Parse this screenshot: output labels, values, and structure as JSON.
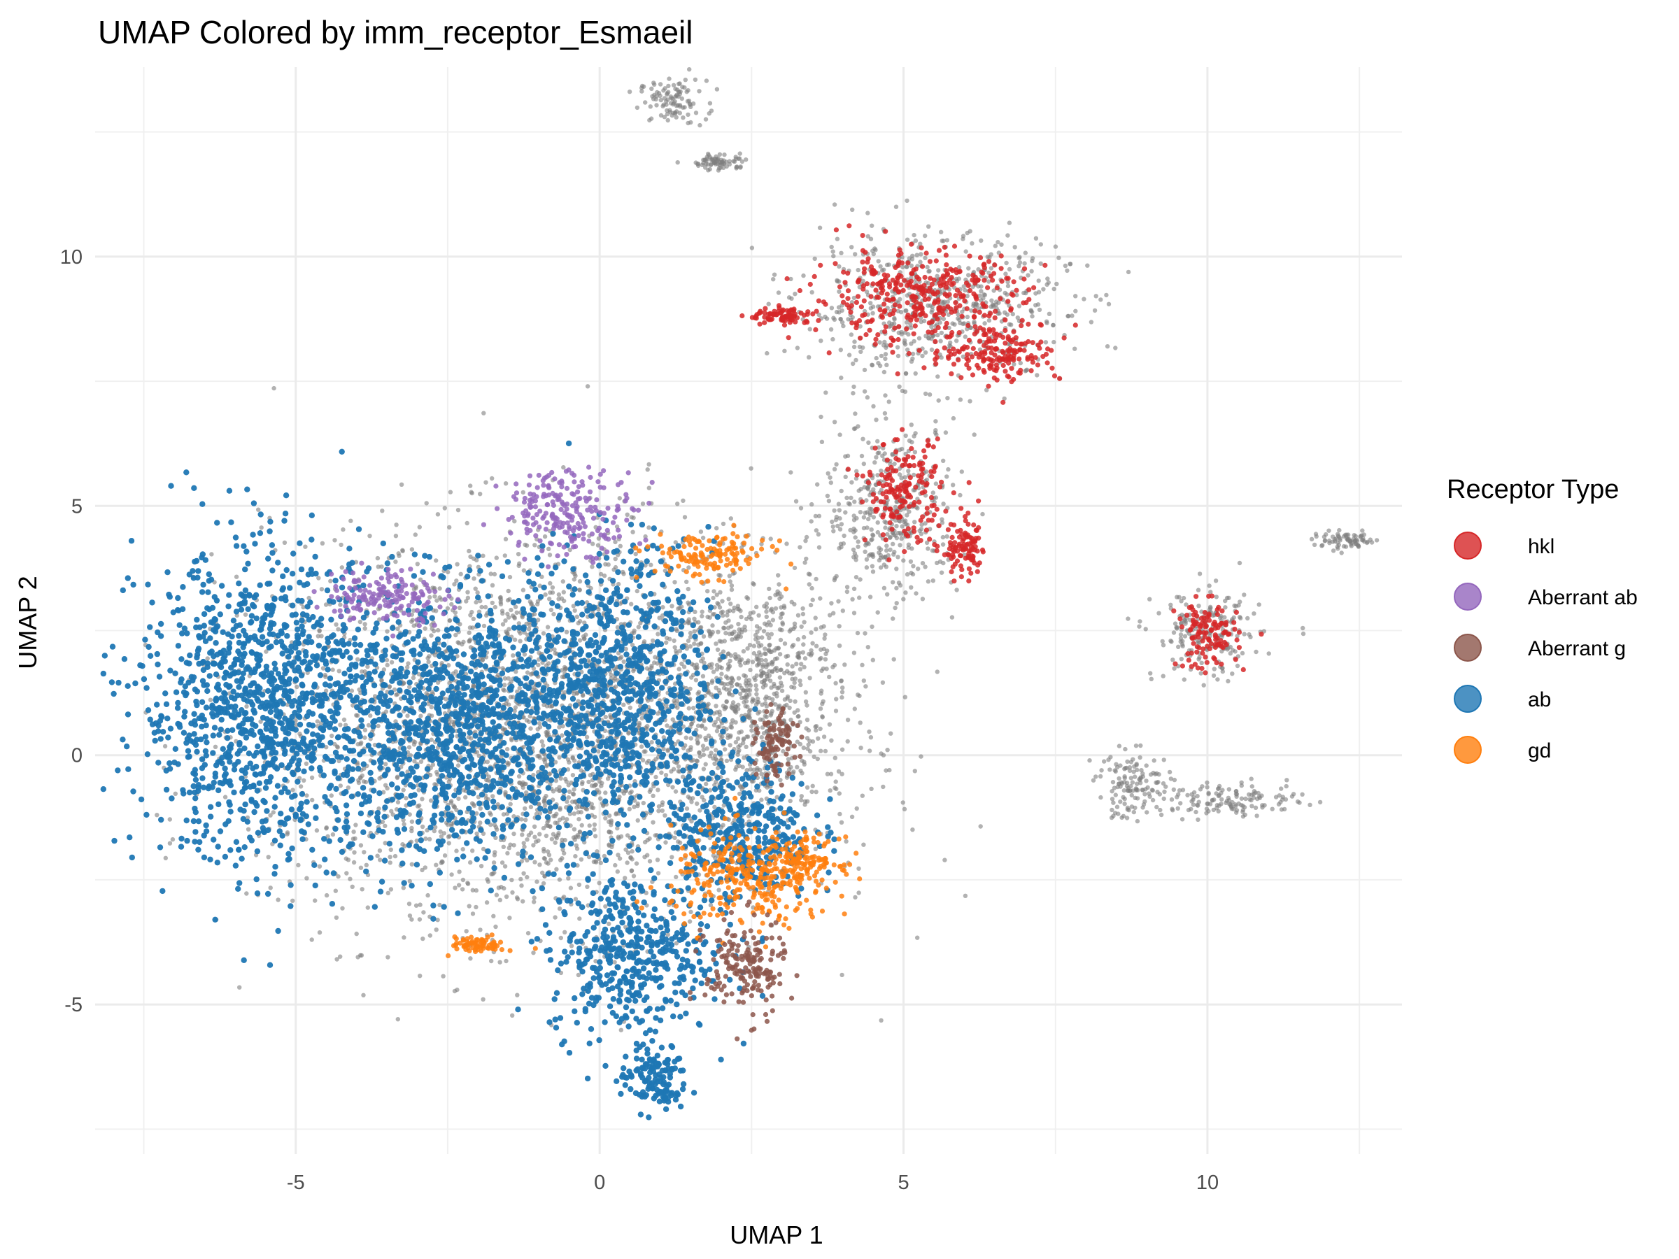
{
  "chart_data": {
    "type": "scatter",
    "title": "UMAP Colored by imm_receptor_Esmaeil",
    "xlabel": "UMAP 1",
    "ylabel": "UMAP 2",
    "xlim": [
      -8.3,
      13.2
    ],
    "ylim": [
      -8.0,
      13.8
    ],
    "x_ticks": [
      -5,
      0,
      5,
      10
    ],
    "x_tick_labels": [
      "-5",
      "0",
      "5",
      "10"
    ],
    "y_ticks": [
      -5,
      0,
      5,
      10
    ],
    "y_tick_labels": [
      "-5",
      "0",
      "5",
      "10"
    ],
    "grid": true,
    "background_series_color": "#7f7f7f",
    "legend": {
      "title": "Receptor Type",
      "position": "right",
      "entries": [
        {
          "label": "hkl",
          "color": "#d62728"
        },
        {
          "label": "Aberrant ab",
          "color": "#9467bd"
        },
        {
          "label": "Aberrant g",
          "color": "#8c564b"
        },
        {
          "label": "ab",
          "color": "#1f77b4"
        },
        {
          "label": "gd",
          "color": "#ff7f0e"
        }
      ]
    },
    "series": [
      {
        "name": "hkl",
        "color": "#d62728",
        "clusters": [
          {
            "cx": 5.2,
            "cy": 9.2,
            "rx": 1.6,
            "ry": 0.85
          },
          {
            "cx": 6.6,
            "cy": 8.1,
            "rx": 0.9,
            "ry": 0.55
          },
          {
            "cx": 3.0,
            "cy": 8.8,
            "rx": 0.5,
            "ry": 0.15
          },
          {
            "cx": 5.0,
            "cy": 5.3,
            "rx": 0.55,
            "ry": 0.9
          },
          {
            "cx": 6.0,
            "cy": 4.1,
            "rx": 0.35,
            "ry": 0.55
          },
          {
            "cx": 10.0,
            "cy": 2.4,
            "rx": 0.45,
            "ry": 0.6
          }
        ]
      },
      {
        "name": "Aberrant ab",
        "color": "#9467bd",
        "clusters": [
          {
            "cx": -0.5,
            "cy": 4.9,
            "rx": 1.0,
            "ry": 0.75
          },
          {
            "cx": -3.5,
            "cy": 3.2,
            "rx": 0.9,
            "ry": 0.5
          }
        ]
      },
      {
        "name": "Aberrant g",
        "color": "#8c564b",
        "clusters": [
          {
            "cx": 2.4,
            "cy": -4.3,
            "rx": 0.6,
            "ry": 0.9
          },
          {
            "cx": 2.9,
            "cy": 0.2,
            "rx": 0.3,
            "ry": 0.6
          }
        ]
      },
      {
        "name": "ab",
        "color": "#1f77b4",
        "clusters": [
          {
            "cx": -5.5,
            "cy": 1.0,
            "rx": 1.9,
            "ry": 2.8
          },
          {
            "cx": -2.4,
            "cy": 0.6,
            "rx": 1.8,
            "ry": 2.4
          },
          {
            "cx": 0.2,
            "cy": 1.3,
            "rx": 1.5,
            "ry": 2.5
          },
          {
            "cx": 0.5,
            "cy": -4.0,
            "rx": 1.2,
            "ry": 1.5
          },
          {
            "cx": 0.9,
            "cy": -6.5,
            "rx": 0.5,
            "ry": 0.6
          },
          {
            "cx": 2.3,
            "cy": -1.5,
            "rx": 1.1,
            "ry": 1.3
          }
        ]
      },
      {
        "name": "gd",
        "color": "#ff7f0e",
        "clusters": [
          {
            "cx": 2.5,
            "cy": -2.5,
            "rx": 1.2,
            "ry": 0.9
          },
          {
            "cx": 3.4,
            "cy": -2.1,
            "rx": 0.5,
            "ry": 0.4
          },
          {
            "cx": 1.8,
            "cy": 4.0,
            "rx": 0.9,
            "ry": 0.4
          },
          {
            "cx": -2.0,
            "cy": -3.8,
            "rx": 0.4,
            "ry": 0.15
          }
        ]
      }
    ],
    "unlabeled_clusters": [
      {
        "cx": 1.2,
        "cy": 13.1,
        "rx": 0.5,
        "ry": 0.4
      },
      {
        "cx": 2.0,
        "cy": 11.9,
        "rx": 0.4,
        "ry": 0.15
      },
      {
        "cx": 5.5,
        "cy": 9.0,
        "rx": 2.0,
        "ry": 1.3
      },
      {
        "cx": 4.8,
        "cy": 4.9,
        "rx": 1.0,
        "ry": 1.6
      },
      {
        "cx": 10.0,
        "cy": 2.4,
        "rx": 0.8,
        "ry": 0.8
      },
      {
        "cx": 8.8,
        "cy": -0.6,
        "rx": 0.6,
        "ry": 0.6
      },
      {
        "cx": 10.5,
        "cy": -0.9,
        "rx": 1.0,
        "ry": 0.3
      },
      {
        "cx": 12.3,
        "cy": 4.3,
        "rx": 0.5,
        "ry": 0.15
      },
      {
        "cx": 2.5,
        "cy": 1.5,
        "rx": 1.3,
        "ry": 2.2
      },
      {
        "cx": -1.0,
        "cy": 0.5,
        "rx": 4.0,
        "ry": 3.5
      }
    ]
  }
}
